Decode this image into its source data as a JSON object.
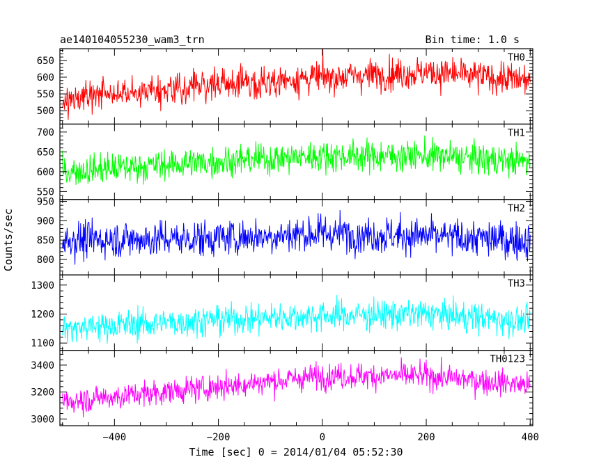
{
  "header": {
    "left_title": "ae140104055230_wam3_trn",
    "right_title": "Bin time: 1.0 s"
  },
  "chart_data": {
    "type": "line",
    "title": "ae140104055230_wam3_trn",
    "subtitle": "Bin time: 1.0 s",
    "xlabel": "Time [sec] 0 = 2014/01/04 05:52:30",
    "ylabel": "Counts/sec",
    "xlim": [
      -505,
      405
    ],
    "x_ticks": [
      -400,
      -200,
      0,
      200,
      400
    ],
    "x_tick_labels": [
      "−400",
      "−200",
      "0",
      "200",
      "400"
    ],
    "bin_time_s": 1.0,
    "x_range": [
      -500,
      400
    ],
    "grid": false,
    "legend": "none",
    "panels": [
      {
        "name": "TH0",
        "color": "#ff0000",
        "ylim": [
          460,
          685
        ],
        "y_ticks": [
          500,
          550,
          600,
          650
        ],
        "trend": [
          [
            -500,
            535
          ],
          [
            -300,
            565
          ],
          [
            0,
            600
          ],
          [
            200,
            615
          ],
          [
            400,
            590
          ]
        ],
        "noise": 32
      },
      {
        "name": "TH1",
        "color": "#00ff00",
        "ylim": [
          530,
          720
        ],
        "y_ticks": [
          550,
          600,
          650,
          700
        ],
        "trend": [
          [
            -500,
            600
          ],
          [
            -250,
            622
          ],
          [
            0,
            640
          ],
          [
            200,
            640
          ],
          [
            400,
            625
          ]
        ],
        "noise": 26
      },
      {
        "name": "TH2",
        "color": "#0000ff",
        "ylim": [
          760,
          955
        ],
        "y_ticks": [
          800,
          850,
          900,
          950
        ],
        "trend": [
          [
            -500,
            850
          ],
          [
            -200,
            855
          ],
          [
            0,
            868
          ],
          [
            200,
            860
          ],
          [
            400,
            848
          ]
        ],
        "noise": 32
      },
      {
        "name": "TH3",
        "color": "#00ffff",
        "ylim": [
          1075,
          1335
        ],
        "y_ticks": [
          1100,
          1200,
          1300
        ],
        "trend": [
          [
            -500,
            1150
          ],
          [
            -200,
            1180
          ],
          [
            0,
            1195
          ],
          [
            200,
            1200
          ],
          [
            400,
            1175
          ]
        ],
        "noise": 35
      },
      {
        "name": "TH0123",
        "color": "#ff00ff",
        "ylim": [
          2950,
          3510
        ],
        "y_ticks": [
          3000,
          3200,
          3400
        ],
        "trend": [
          [
            -500,
            3130
          ],
          [
            -250,
            3220
          ],
          [
            0,
            3320
          ],
          [
            200,
            3320
          ],
          [
            400,
            3250
          ]
        ],
        "noise": 65
      }
    ]
  }
}
